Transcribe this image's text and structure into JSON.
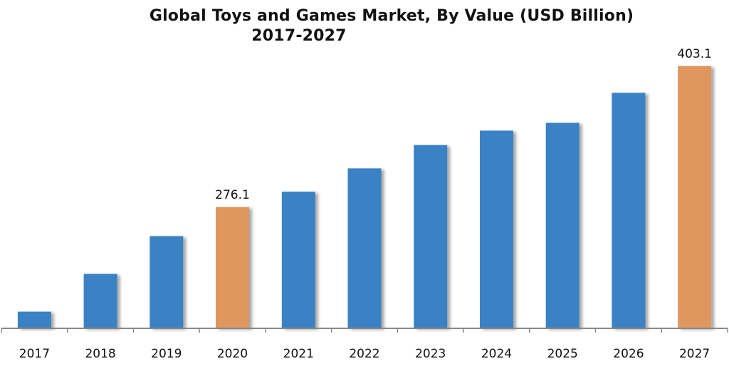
{
  "chart_data": {
    "type": "bar",
    "title": "Global Toys and Games Market, By Value (USD Billion)",
    "subtitle": "2017-2027",
    "xlabel": "",
    "ylabel": "",
    "categories": [
      "2017",
      "2018",
      "2019",
      "2020",
      "2021",
      "2022",
      "2023",
      "2024",
      "2025",
      "2026",
      "2027"
    ],
    "values": [
      182,
      216,
      250,
      276.1,
      290,
      311,
      332,
      345,
      352,
      379,
      403.1
    ],
    "highlight": [
      false,
      false,
      false,
      true,
      false,
      false,
      false,
      false,
      false,
      false,
      true
    ],
    "data_labels": [
      "",
      "",
      "",
      "276.1",
      "",
      "",
      "",
      "",
      "",
      "",
      "403.1"
    ],
    "ylim": [
      167,
      410
    ],
    "grid": false,
    "legend": "none",
    "colors": {
      "bar": "#3b82c4",
      "highlight": "#e0975e",
      "axis": "#888888",
      "text": "#111111"
    }
  }
}
